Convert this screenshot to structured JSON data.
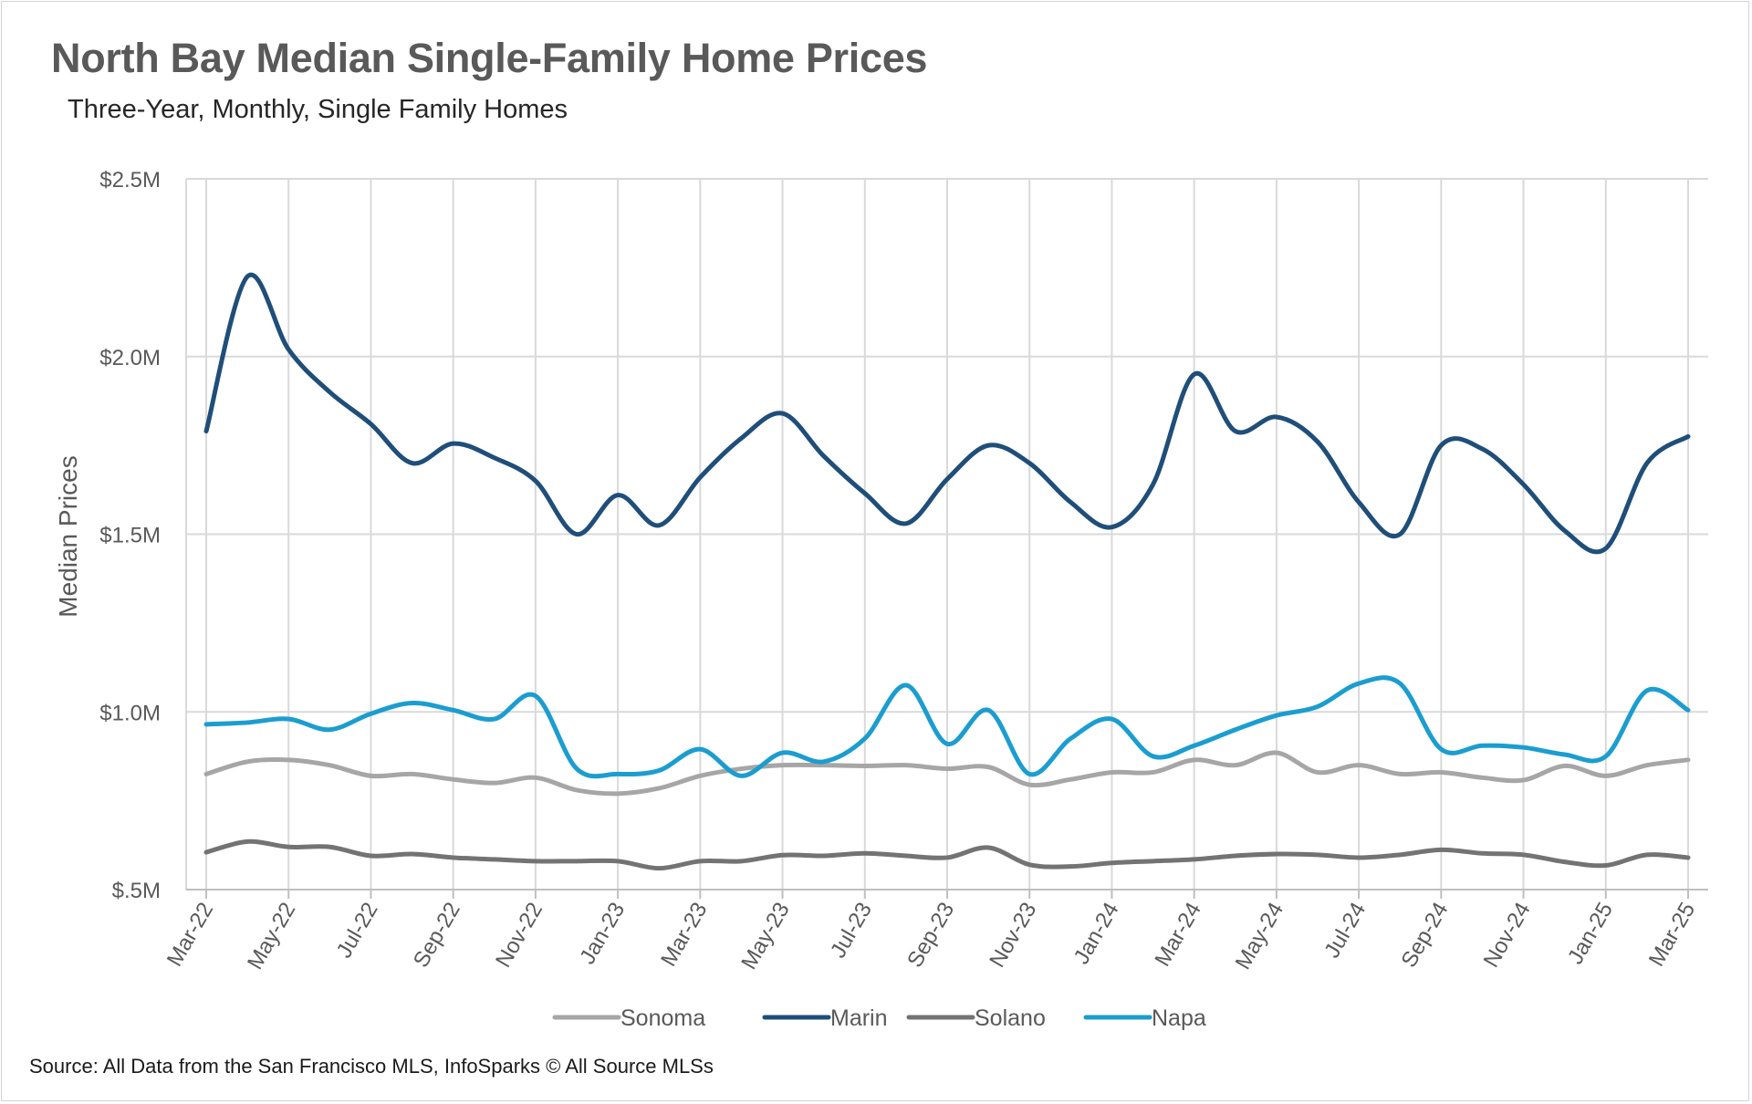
{
  "title": "North Bay Median Single-Family Home Prices",
  "subtitle": "Three-Year, Monthly, Single Family Homes",
  "source": "Source: All Data from the San Francisco MLS, InfoSparks © All Source MLSs",
  "chart_data": {
    "type": "line",
    "title": "North Bay Median Single-Family Home Prices",
    "subtitle": "Three-Year, Monthly, Single Family Homes",
    "xlabel": "",
    "ylabel": "Median Prices",
    "ylim": [
      500000,
      2500000
    ],
    "yticks": [
      500000,
      1000000,
      1500000,
      2000000,
      2500000
    ],
    "ytick_labels": [
      "$.5M",
      "$1.0M",
      "$1.5M",
      "$2.0M",
      "$2.5M"
    ],
    "grid": true,
    "legend": "bottom",
    "x": [
      "Mar-22",
      "Apr-22",
      "May-22",
      "Jun-22",
      "Jul-22",
      "Aug-22",
      "Sep-22",
      "Oct-22",
      "Nov-22",
      "Dec-22",
      "Jan-23",
      "Feb-23",
      "Mar-23",
      "Apr-23",
      "May-23",
      "Jun-23",
      "Jul-23",
      "Aug-23",
      "Sep-23",
      "Oct-23",
      "Nov-23",
      "Dec-23",
      "Jan-24",
      "Feb-24",
      "Mar-24",
      "Apr-24",
      "May-24",
      "Jun-24",
      "Jul-24",
      "Aug-24",
      "Sep-24",
      "Oct-24",
      "Nov-24",
      "Dec-24",
      "Jan-25",
      "Feb-25",
      "Mar-25"
    ],
    "xtick_labels": [
      "Mar-22",
      "May-22",
      "Jul-22",
      "Sep-22",
      "Nov-22",
      "Jan-23",
      "Mar-23",
      "May-23",
      "Jul-23",
      "Sep-23",
      "Nov-23",
      "Jan-24",
      "Mar-24",
      "May-24",
      "Jul-24",
      "Sep-24",
      "Nov-24",
      "Jan-25",
      "Mar-25"
    ],
    "series": [
      {
        "name": "Sonoma",
        "color": "#a6a6a6",
        "values": [
          825000,
          860000,
          865000,
          850000,
          820000,
          825000,
          810000,
          800000,
          815000,
          780000,
          770000,
          785000,
          820000,
          840000,
          850000,
          850000,
          848000,
          850000,
          840000,
          845000,
          795000,
          810000,
          830000,
          830000,
          865000,
          850000,
          885000,
          830000,
          850000,
          825000,
          830000,
          815000,
          808000,
          848000,
          820000,
          850000,
          865000
        ]
      },
      {
        "name": "Marin",
        "color": "#1f4e79",
        "values": [
          1790000,
          2225000,
          2020000,
          1900000,
          1810000,
          1700000,
          1755000,
          1715000,
          1650000,
          1500000,
          1610000,
          1525000,
          1660000,
          1770000,
          1840000,
          1720000,
          1615000,
          1530000,
          1655000,
          1750000,
          1700000,
          1590000,
          1520000,
          1640000,
          1950000,
          1790000,
          1830000,
          1760000,
          1590000,
          1500000,
          1750000,
          1740000,
          1640000,
          1510000,
          1460000,
          1700000,
          1775000
        ]
      },
      {
        "name": "Solano",
        "color": "#737373",
        "values": [
          605000,
          635000,
          620000,
          620000,
          595000,
          600000,
          590000,
          585000,
          580000,
          580000,
          580000,
          560000,
          580000,
          580000,
          597000,
          595000,
          602000,
          595000,
          590000,
          618000,
          570000,
          565000,
          575000,
          580000,
          585000,
          595000,
          600000,
          598000,
          590000,
          598000,
          612000,
          602000,
          598000,
          578000,
          568000,
          598000,
          590000
        ]
      },
      {
        "name": "Napa",
        "color": "#1b9dd0",
        "values": [
          965000,
          970000,
          980000,
          950000,
          995000,
          1025000,
          1005000,
          980000,
          1045000,
          840000,
          825000,
          835000,
          895000,
          820000,
          885000,
          860000,
          925000,
          1075000,
          910000,
          1005000,
          825000,
          925000,
          980000,
          875000,
          905000,
          950000,
          990000,
          1015000,
          1080000,
          1080000,
          895000,
          905000,
          900000,
          880000,
          875000,
          1060000,
          1005000
        ]
      }
    ]
  }
}
